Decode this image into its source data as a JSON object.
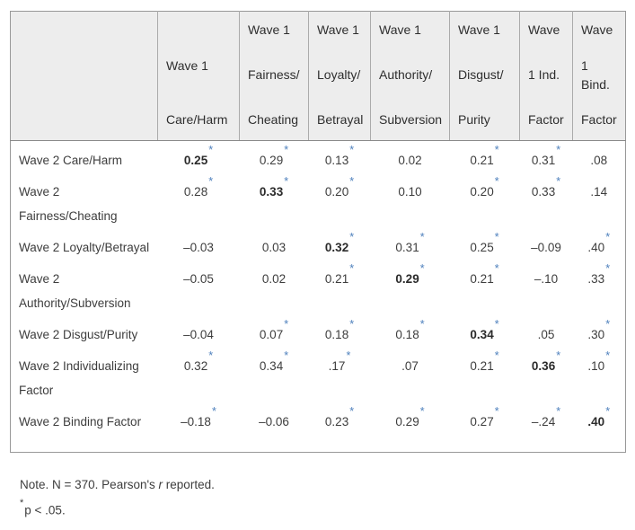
{
  "table": {
    "columns": [
      {
        "name": "row-header-spacer",
        "groups": [
          [
            ""
          ]
        ]
      },
      {
        "name": "wave1-care-harm",
        "groups": [
          [
            ""
          ],
          [
            "Wave 1"
          ],
          [
            "Care/Harm"
          ]
        ]
      },
      {
        "name": "wave1-fairness-cheating",
        "groups": [
          [
            "Wave 1"
          ],
          [
            "Fairness/"
          ],
          [
            "Cheating"
          ]
        ]
      },
      {
        "name": "wave1-loyalty-betrayal",
        "groups": [
          [
            "Wave 1"
          ],
          [
            "Loyalty/"
          ],
          [
            "Betrayal"
          ]
        ]
      },
      {
        "name": "wave1-authority-subversion",
        "groups": [
          [
            "Wave 1"
          ],
          [
            "Authority/"
          ],
          [
            "Subversion"
          ]
        ]
      },
      {
        "name": "wave1-disgust-purity",
        "groups": [
          [
            "Wave 1"
          ],
          [
            "Disgust/"
          ],
          [
            "Purity"
          ]
        ]
      },
      {
        "name": "wave1-individualizing-factor",
        "groups": [
          [
            "Wave"
          ],
          [
            "1 Ind."
          ],
          [
            "Factor"
          ]
        ]
      },
      {
        "name": "wave1-binding-factor",
        "groups": [
          [
            "Wave"
          ],
          [
            "1",
            "Bind."
          ],
          [
            "Factor"
          ]
        ]
      }
    ],
    "rows": [
      {
        "label": "Wave 2 Care/Harm",
        "values": [
          {
            "v": "0.25",
            "star": true,
            "bold": true
          },
          {
            "v": "0.29",
            "star": true,
            "bold": false
          },
          {
            "v": "0.13",
            "star": true,
            "bold": false
          },
          {
            "v": "0.02",
            "star": false,
            "bold": false
          },
          {
            "v": "0.21",
            "star": true,
            "bold": false
          },
          {
            "v": "0.31",
            "star": true,
            "bold": false
          },
          {
            "v": ".08",
            "star": false,
            "bold": false
          }
        ]
      },
      {
        "label": "Wave 2 Fairness/Cheating",
        "values": [
          {
            "v": "0.28",
            "star": true,
            "bold": false
          },
          {
            "v": "0.33",
            "star": true,
            "bold": true
          },
          {
            "v": "0.20",
            "star": true,
            "bold": false
          },
          {
            "v": "0.10",
            "star": false,
            "bold": false
          },
          {
            "v": "0.20",
            "star": true,
            "bold": false
          },
          {
            "v": "0.33",
            "star": true,
            "bold": false
          },
          {
            "v": ".14",
            "star": false,
            "bold": false
          }
        ]
      },
      {
        "label": "Wave 2 Loyalty/Betrayal",
        "values": [
          {
            "v": "–0.03",
            "star": false,
            "bold": false
          },
          {
            "v": "0.03",
            "star": false,
            "bold": false
          },
          {
            "v": "0.32",
            "star": true,
            "bold": true
          },
          {
            "v": "0.31",
            "star": true,
            "bold": false
          },
          {
            "v": "0.25",
            "star": true,
            "bold": false
          },
          {
            "v": "–0.09",
            "star": false,
            "bold": false
          },
          {
            "v": ".40",
            "star": true,
            "bold": false
          }
        ]
      },
      {
        "label": "Wave 2 Authority/Subversion",
        "values": [
          {
            "v": "–0.05",
            "star": false,
            "bold": false
          },
          {
            "v": "0.02",
            "star": false,
            "bold": false
          },
          {
            "v": "0.21",
            "star": true,
            "bold": false
          },
          {
            "v": "0.29",
            "star": true,
            "bold": true
          },
          {
            "v": "0.21",
            "star": true,
            "bold": false
          },
          {
            "v": "–.10",
            "star": false,
            "bold": false
          },
          {
            "v": ".33",
            "star": true,
            "bold": false
          }
        ]
      },
      {
        "label": "Wave 2 Disgust/Purity",
        "values": [
          {
            "v": "–0.04",
            "star": false,
            "bold": false
          },
          {
            "v": "0.07",
            "star": true,
            "bold": false
          },
          {
            "v": "0.18",
            "star": true,
            "bold": false
          },
          {
            "v": "0.18",
            "star": true,
            "bold": false
          },
          {
            "v": "0.34",
            "star": true,
            "bold": true
          },
          {
            "v": ".05",
            "star": false,
            "bold": false
          },
          {
            "v": ".30",
            "star": true,
            "bold": false
          }
        ]
      },
      {
        "label": "Wave 2 Individualizing Factor",
        "values": [
          {
            "v": "0.32",
            "star": true,
            "bold": false
          },
          {
            "v": "0.34",
            "star": true,
            "bold": false
          },
          {
            "v": ".17",
            "star": true,
            "bold": false
          },
          {
            "v": ".07",
            "star": false,
            "bold": false
          },
          {
            "v": "0.21",
            "star": true,
            "bold": false
          },
          {
            "v": "0.36",
            "star": true,
            "bold": true
          },
          {
            "v": ".10",
            "star": true,
            "bold": false
          }
        ]
      },
      {
        "label": "Wave 2 Binding Factor",
        "values": [
          {
            "v": "–0.18",
            "star": true,
            "bold": false
          },
          {
            "v": "–0.06",
            "star": false,
            "bold": false
          },
          {
            "v": "0.23",
            "star": true,
            "bold": false
          },
          {
            "v": "0.29",
            "star": true,
            "bold": false
          },
          {
            "v": "0.27",
            "star": true,
            "bold": false
          },
          {
            "v": "–.24",
            "star": true,
            "bold": false
          },
          {
            "v": ".40",
            "star": true,
            "bold": true
          }
        ]
      }
    ],
    "star_symbol": "*"
  },
  "notes": {
    "note_prefix": "Note. N = 370. Pearson's ",
    "note_italic": "r",
    "note_suffix": " reported.",
    "sig_star": "*",
    "sig_text": "p < .05."
  },
  "colors": {
    "star_accent": "#4f81bd",
    "header_background": "#ededed",
    "table_border": "#999999",
    "body_text": "#3d3d3d"
  }
}
